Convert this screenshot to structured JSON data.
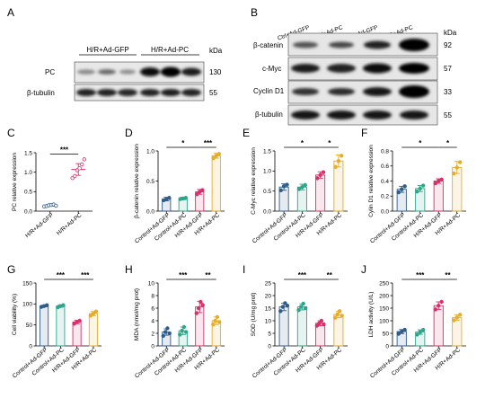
{
  "panels": {
    "A": {
      "label": "A",
      "groups": [
        "H/R+Ad-GFP",
        "H/R+Ad-PC"
      ],
      "unit": "kDa",
      "rows": [
        {
          "name": "PC",
          "kda": "130"
        },
        {
          "name": "β-tubulin",
          "kda": "55"
        }
      ]
    },
    "B": {
      "label": "B",
      "lanes": [
        "Ctrl+Ad-GFP",
        "Ctrl+Ad-PC",
        "H/R+Ad-GFP",
        "H/R+Ad-PC"
      ],
      "unit": "kDa",
      "rows": [
        {
          "name": "β-catenin",
          "kda": "92"
        },
        {
          "name": "c-Myc",
          "kda": "57"
        },
        {
          "name": "Cyclin D1",
          "kda": "33"
        },
        {
          "name": "β-tubulin",
          "kda": "55"
        }
      ]
    }
  },
  "colors": {
    "control_gfp": "#2e5d8c",
    "control_pc": "#2ea58a",
    "hr_gfp": "#d8306a",
    "hr_pc": "#e6ad2a"
  },
  "chart_data": [
    {
      "id": "C",
      "label": "C",
      "type": "scatter",
      "categories": [
        "H/R+Ad-GFP",
        "H/R+Ad-PC"
      ],
      "ylabel": "PC relative expression",
      "ylim": [
        0,
        1.5
      ],
      "yticks": [
        "0.0",
        "0.5",
        "1.0",
        "1.5"
      ],
      "values": [
        0.15,
        1.07
      ],
      "errors": [
        0.02,
        0.15
      ],
      "points": [
        [
          0.12,
          0.13,
          0.15,
          0.16,
          0.17,
          0.14
        ],
        [
          0.85,
          0.9,
          1.05,
          1.1,
          1.2,
          1.33
        ]
      ],
      "colors": [
        "#2e5d8c",
        "#d8306a"
      ],
      "significance": [
        {
          "from": 0,
          "to": 1,
          "text": "***"
        }
      ]
    },
    {
      "id": "D",
      "label": "D",
      "type": "bar",
      "categories": [
        "Control+Ad-GFP",
        "Control+Ad-PC",
        "H/R+Ad-GFP",
        "H/R+Ad-PC"
      ],
      "ylabel": "β-catenin relative expression",
      "ylim": [
        0,
        1.0
      ],
      "yticks": [
        "0.0",
        "0.5",
        "1.0"
      ],
      "values": [
        0.2,
        0.21,
        0.32,
        0.92
      ],
      "errors": [
        0.03,
        0.02,
        0.04,
        0.04
      ],
      "points": [
        [
          0.18,
          0.2,
          0.22
        ],
        [
          0.2,
          0.21,
          0.22
        ],
        [
          0.28,
          0.32,
          0.35
        ],
        [
          0.88,
          0.92,
          0.95
        ]
      ],
      "significance": [
        {
          "from": 0,
          "to": 2,
          "text": "*"
        },
        {
          "from": 2,
          "to": 3,
          "text": "***"
        }
      ]
    },
    {
      "id": "E",
      "label": "E",
      "type": "bar",
      "categories": [
        "Control+Ad-GFP",
        "Control+Ad-PC",
        "H/R+Ad-GFP",
        "H/R+Ad-PC"
      ],
      "ylabel": "C-Myc relative expression",
      "ylim": [
        0,
        1.5
      ],
      "yticks": [
        "0.0",
        "0.5",
        "1.0",
        "1.5"
      ],
      "values": [
        0.6,
        0.6,
        0.9,
        1.25
      ],
      "errors": [
        0.08,
        0.07,
        0.08,
        0.15
      ],
      "points": [
        [
          0.52,
          0.62,
          0.66
        ],
        [
          0.55,
          0.6,
          0.65
        ],
        [
          0.82,
          0.9,
          0.97
        ],
        [
          1.1,
          1.25,
          1.38
        ]
      ],
      "significance": [
        {
          "from": 0,
          "to": 2,
          "text": "*"
        },
        {
          "from": 2,
          "to": 3,
          "text": "*"
        }
      ]
    },
    {
      "id": "F",
      "label": "F",
      "type": "bar",
      "categories": [
        "Control+Ad-GFP",
        "Control+Ad-PC",
        "H/R+Ad-GFP",
        "H/R+Ad-PC"
      ],
      "ylabel": "Cylin D1 relative expression",
      "ylim": [
        0,
        0.8
      ],
      "yticks": [
        "0.0",
        "0.2",
        "0.4",
        "0.6",
        "0.8"
      ],
      "values": [
        0.29,
        0.3,
        0.4,
        0.58
      ],
      "errors": [
        0.04,
        0.04,
        0.03,
        0.08
      ],
      "points": [
        [
          0.25,
          0.29,
          0.33
        ],
        [
          0.26,
          0.3,
          0.34
        ],
        [
          0.37,
          0.4,
          0.42
        ],
        [
          0.5,
          0.58,
          0.65
        ]
      ],
      "significance": [
        {
          "from": 0,
          "to": 2,
          "text": "*"
        },
        {
          "from": 2,
          "to": 3,
          "text": "*"
        }
      ]
    },
    {
      "id": "G",
      "label": "G",
      "type": "bar",
      "categories": [
        "Control+Ad-GFP",
        "Control+Ad-PC",
        "H/R+Ad-GFP",
        "H/R+Ad-PC"
      ],
      "ylabel": "Cell viability (%)",
      "ylim": [
        0,
        150
      ],
      "yticks": [
        "0",
        "50",
        "100",
        "150"
      ],
      "values": [
        95,
        95,
        57,
        77
      ],
      "errors": [
        2,
        3,
        4,
        5
      ],
      "points": [
        [
          93,
          95,
          97
        ],
        [
          92,
          95,
          97
        ],
        [
          53,
          57,
          60
        ],
        [
          72,
          77,
          82
        ]
      ],
      "significance": [
        {
          "from": 0,
          "to": 2,
          "text": "***"
        },
        {
          "from": 2,
          "to": 3,
          "text": "***"
        }
      ]
    },
    {
      "id": "H",
      "label": "H",
      "type": "bar",
      "categories": [
        "Control+Ad-GFP",
        "Control+Ad-PC",
        "H/R+Ad-GFP",
        "H/R+Ad-PC"
      ],
      "ylabel": "MDA (nmol/mg prot)",
      "ylim": [
        0,
        10
      ],
      "yticks": [
        "0",
        "2",
        "4",
        "6",
        "8",
        "10"
      ],
      "values": [
        2.2,
        2.4,
        6.2,
        4.0
      ],
      "errors": [
        0.5,
        0.6,
        0.9,
        0.6
      ],
      "points": [
        [
          1.6,
          2.2,
          2.8,
          2.0
        ],
        [
          1.8,
          2.4,
          3.0,
          2.2
        ],
        [
          5.2,
          6.0,
          7.0,
          6.5
        ],
        [
          3.4,
          4.0,
          4.6,
          3.8
        ]
      ],
      "significance": [
        {
          "from": 0,
          "to": 2,
          "text": "***"
        },
        {
          "from": 2,
          "to": 3,
          "text": "**"
        }
      ]
    },
    {
      "id": "I",
      "label": "I",
      "type": "bar",
      "categories": [
        "Control+Ad-GFP",
        "Control+Ad-PC",
        "H/R+Ad-GFP",
        "H/R+Ad-PC"
      ],
      "ylabel": "SOD (U/mg prot)",
      "ylim": [
        0,
        25
      ],
      "yticks": [
        "0",
        "5",
        "10",
        "15",
        "20",
        "25"
      ],
      "values": [
        15.5,
        15.5,
        9.0,
        12.5
      ],
      "errors": [
        1.5,
        1.2,
        1.0,
        1.3
      ],
      "points": [
        [
          13.8,
          15.5,
          17.0,
          16.0
        ],
        [
          14.2,
          15.5,
          16.8,
          15.0
        ],
        [
          8.0,
          9.0,
          10.0,
          8.6
        ],
        [
          11.2,
          12.5,
          13.8,
          12.0
        ]
      ],
      "significance": [
        {
          "from": 0,
          "to": 2,
          "text": "***"
        },
        {
          "from": 2,
          "to": 3,
          "text": "**"
        }
      ]
    },
    {
      "id": "J",
      "label": "J",
      "type": "bar",
      "categories": [
        "Control+Ad-GFP",
        "Control+Ad-PC",
        "H/R+Ad-GFP",
        "H/R+Ad-PC"
      ],
      "ylabel": "LDH activity (U/L)",
      "ylim": [
        0,
        250
      ],
      "yticks": [
        "0",
        "50",
        "100",
        "150",
        "200",
        "250"
      ],
      "values": [
        57,
        55,
        160,
        113
      ],
      "errors": [
        8,
        9,
        15,
        11
      ],
      "points": [
        [
          48,
          57,
          64
        ],
        [
          45,
          55,
          64
        ],
        [
          145,
          160,
          175
        ],
        [
          102,
          113,
          124
        ]
      ],
      "significance": [
        {
          "from": 0,
          "to": 2,
          "text": "***"
        },
        {
          "from": 2,
          "to": 3,
          "text": "**"
        }
      ]
    }
  ]
}
